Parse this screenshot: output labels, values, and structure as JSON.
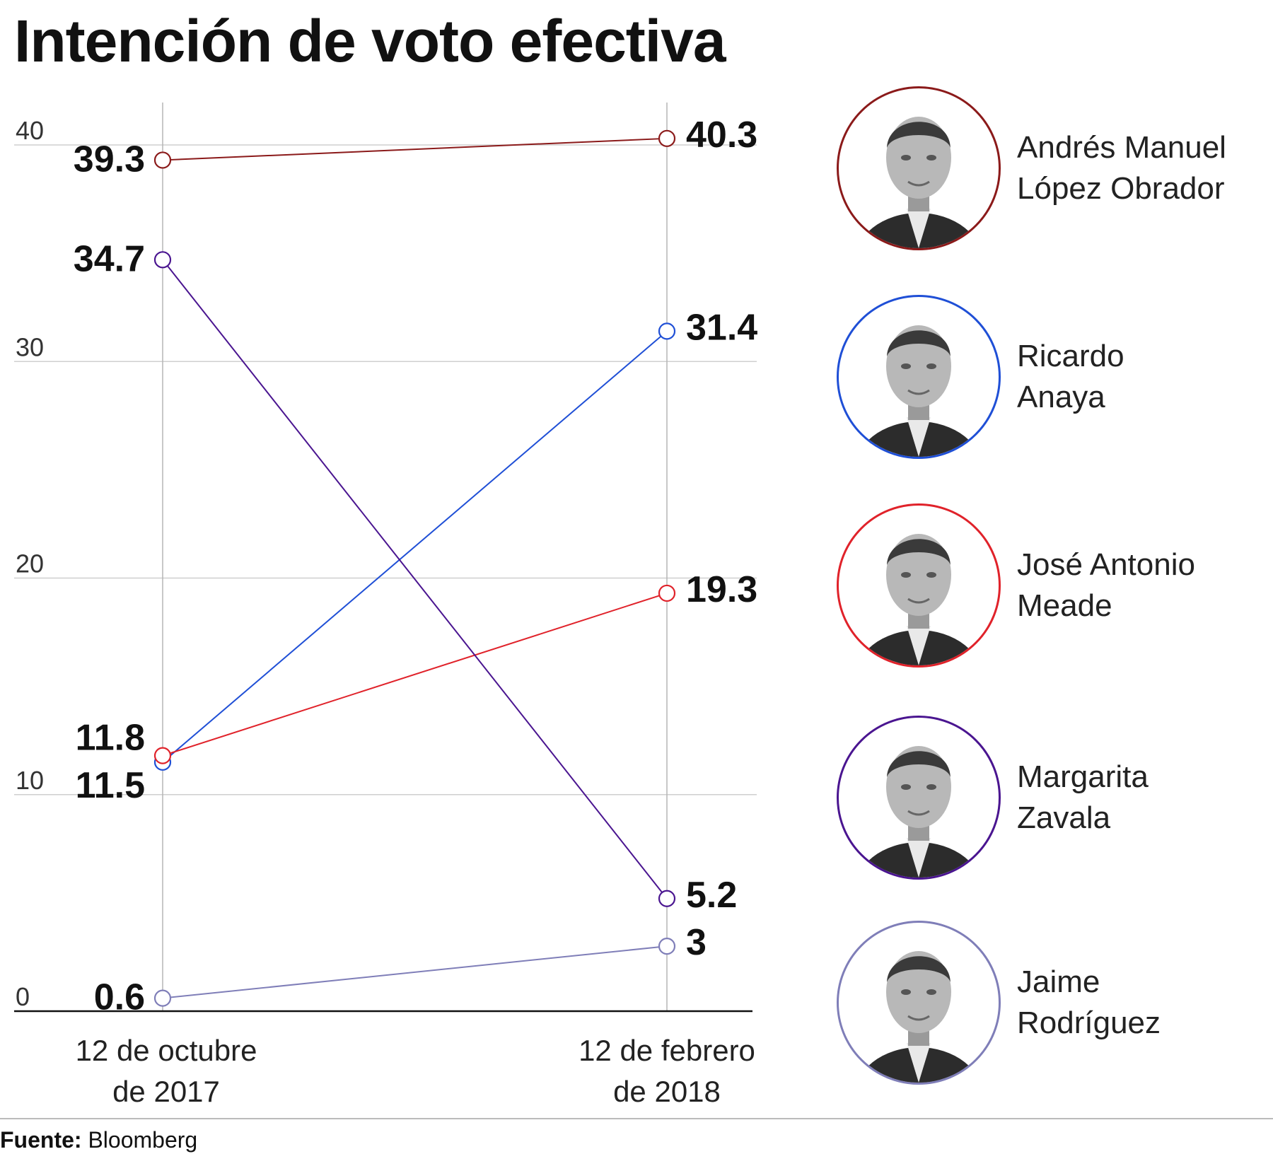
{
  "title": "Intención de voto efectiva",
  "source": {
    "label": "Fuente:",
    "value": "Bloomberg"
  },
  "chart_data": {
    "type": "line",
    "title": "Intención de voto efectiva",
    "x": [
      "12 de octubre de 2017",
      "12 de febrero de 2018"
    ],
    "x_labels": [
      [
        "12 de octubre",
        "de 2017"
      ],
      [
        "12 de febrero",
        "de 2018"
      ]
    ],
    "ylim": [
      0,
      40
    ],
    "yticks": [
      0,
      10,
      20,
      30,
      40
    ],
    "grid": true,
    "legend": "right",
    "series": [
      {
        "name": "Andrés Manuel López Obrador",
        "values": [
          39.3,
          40.3
        ],
        "labels": [
          "39.3",
          "40.3"
        ],
        "color": "#8b1a1a"
      },
      {
        "name": "Ricardo Anaya",
        "values": [
          11.5,
          31.4
        ],
        "labels": [
          "11.5",
          "31.4"
        ],
        "color": "#1f4fd6"
      },
      {
        "name": "José Antonio Meade",
        "values": [
          11.8,
          19.3
        ],
        "labels": [
          "11.8",
          "19.3"
        ],
        "color": "#e0222a"
      },
      {
        "name": "Margarita Zavala",
        "values": [
          34.7,
          5.2
        ],
        "labels": [
          "34.7",
          "5.2"
        ],
        "color": "#4a1590"
      },
      {
        "name": "Jaime Rodríguez",
        "values": [
          0.6,
          3
        ],
        "labels": [
          "0.6",
          "3"
        ],
        "color": "#7f7eb8"
      }
    ]
  },
  "candidates": [
    {
      "name_lines": [
        "Andrés Manuel",
        "López Obrador"
      ],
      "color": "#8b1a1a",
      "icon": "portrait-photo"
    },
    {
      "name_lines": [
        "Ricardo",
        "Anaya"
      ],
      "color": "#1f4fd6",
      "icon": "portrait-photo"
    },
    {
      "name_lines": [
        "José Antonio",
        "Meade"
      ],
      "color": "#e0222a",
      "icon": "portrait-photo"
    },
    {
      "name_lines": [
        "Margarita",
        "Zavala"
      ],
      "color": "#4a1590",
      "icon": "portrait-photo"
    },
    {
      "name_lines": [
        "Jaime",
        "Rodríguez"
      ],
      "color": "#7f7eb8",
      "icon": "portrait-photo"
    }
  ]
}
